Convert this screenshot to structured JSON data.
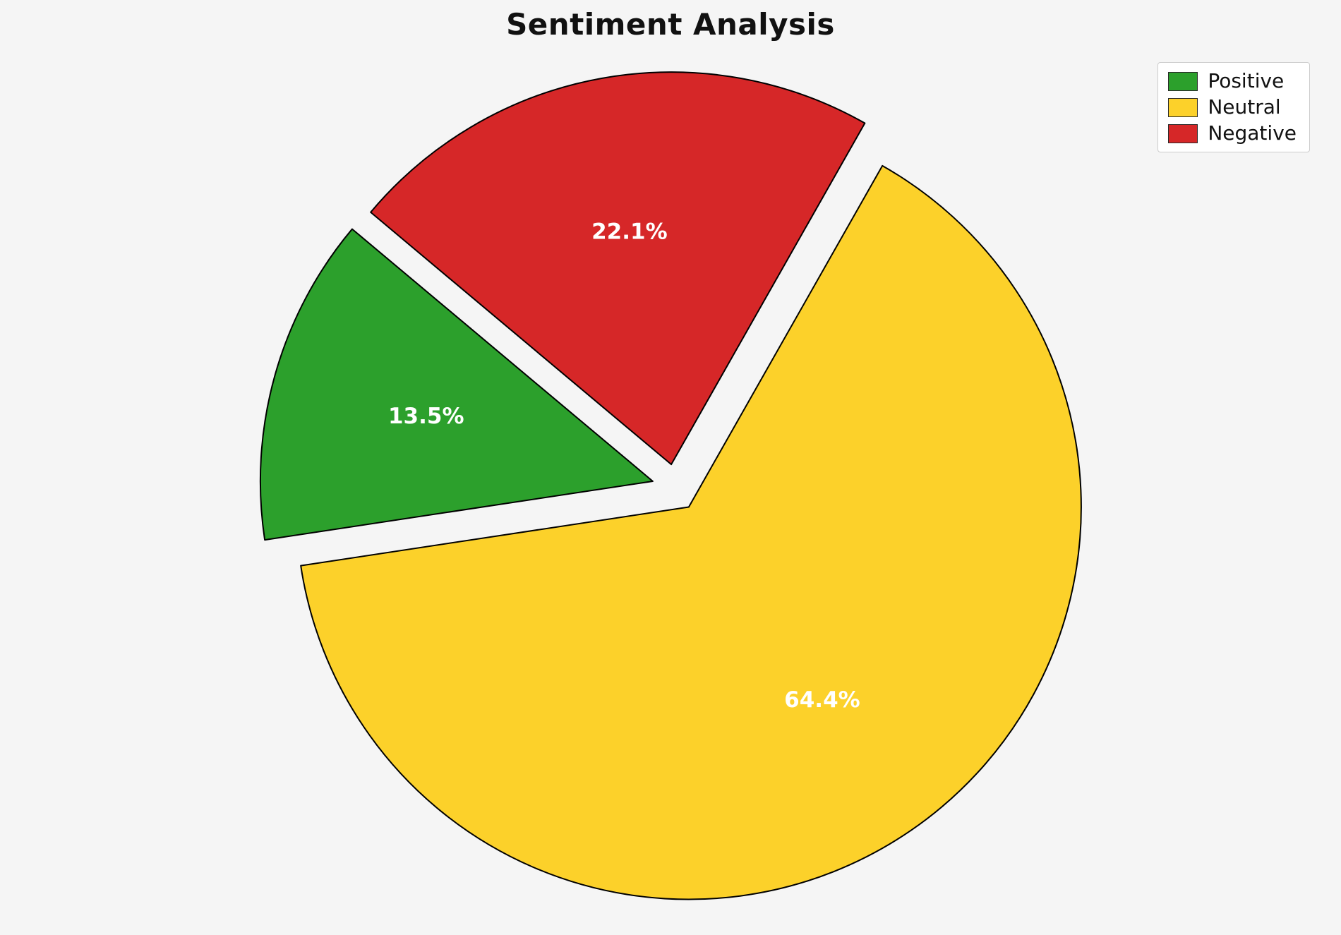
{
  "chart_data": {
    "type": "pie",
    "title": "Sentiment Analysis",
    "categories": [
      "Positive",
      "Neutral",
      "Negative"
    ],
    "values": [
      13.5,
      64.4,
      22.1
    ],
    "value_labels": [
      "13.5%",
      "64.4%",
      "22.1%"
    ],
    "colors": [
      "#2ca02c",
      "#fcd12a",
      "#d62728"
    ],
    "legend_position": "upper right",
    "legend_entries": [
      "Positive",
      "Neutral",
      "Negative"
    ],
    "start_angle": 140,
    "counterclockwise": true,
    "explode": 0.06,
    "pct_distance": 0.6,
    "background_color": "#f5f5f5",
    "edge_color": "#000000",
    "label_color": "#ffffff"
  }
}
